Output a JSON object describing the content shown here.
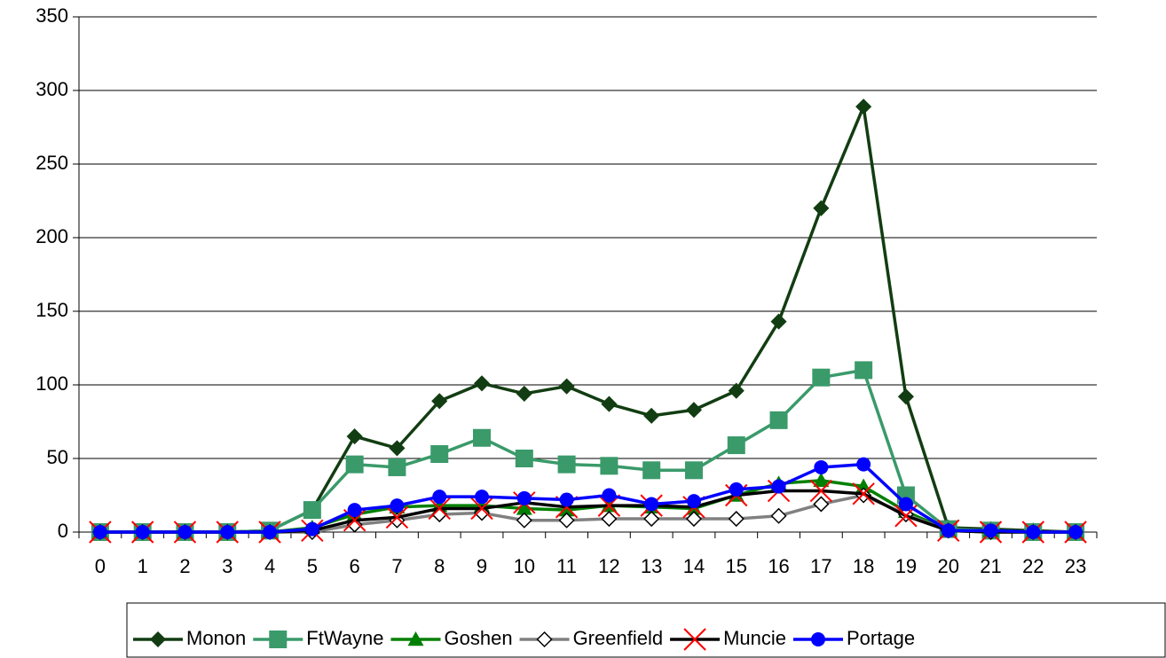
{
  "chart_data": {
    "type": "line",
    "categories": [
      "0",
      "1",
      "2",
      "3",
      "4",
      "5",
      "6",
      "7",
      "8",
      "9",
      "10",
      "11",
      "12",
      "13",
      "14",
      "15",
      "16",
      "17",
      "18",
      "19",
      "20",
      "21",
      "22",
      "23"
    ],
    "series": [
      {
        "name": "Monon",
        "color": "#123d12",
        "marker": "diamond",
        "values": [
          0,
          0,
          0,
          0,
          1,
          15,
          65,
          57,
          89,
          101,
          94,
          99,
          87,
          79,
          83,
          96,
          143,
          220,
          289,
          92,
          3,
          2,
          1,
          0
        ]
      },
      {
        "name": "FtWayne",
        "color": "#3a9a6a",
        "marker": "square",
        "values": [
          0,
          0,
          0,
          0,
          1,
          15,
          46,
          44,
          53,
          64,
          50,
          46,
          45,
          42,
          42,
          59,
          76,
          105,
          110,
          25,
          2,
          1,
          0,
          0
        ]
      },
      {
        "name": "Goshen",
        "color": "#008000",
        "marker": "triangle",
        "values": [
          0,
          0,
          0,
          0,
          0,
          3,
          12,
          17,
          18,
          18,
          16,
          15,
          18,
          17,
          16,
          25,
          33,
          35,
          31,
          14,
          1,
          1,
          0,
          0
        ]
      },
      {
        "name": "Greenfield",
        "color": "#808080",
        "marker": "open-diamond",
        "values": [
          0,
          0,
          0,
          0,
          0,
          0,
          5,
          8,
          12,
          13,
          8,
          8,
          9,
          9,
          9,
          9,
          11,
          19,
          25,
          12,
          1,
          0,
          0,
          0
        ]
      },
      {
        "name": "Muncie",
        "color": "#000000",
        "marker": "x",
        "values": [
          0,
          0,
          0,
          0,
          0,
          1,
          8,
          10,
          16,
          16,
          20,
          17,
          18,
          18,
          17,
          25,
          28,
          28,
          26,
          11,
          1,
          0,
          0,
          0
        ]
      },
      {
        "name": "Portage",
        "color": "#0000ff",
        "marker": "circle",
        "values": [
          0,
          0,
          0,
          0,
          0,
          2,
          15,
          18,
          24,
          24,
          23,
          22,
          25,
          19,
          21,
          29,
          31,
          44,
          46,
          19,
          1,
          1,
          0,
          0
        ]
      }
    ],
    "ylim": [
      0,
      350
    ],
    "yticks": [
      0,
      50,
      100,
      150,
      200,
      250,
      300,
      350
    ],
    "grid": true,
    "legend": "bottom"
  }
}
